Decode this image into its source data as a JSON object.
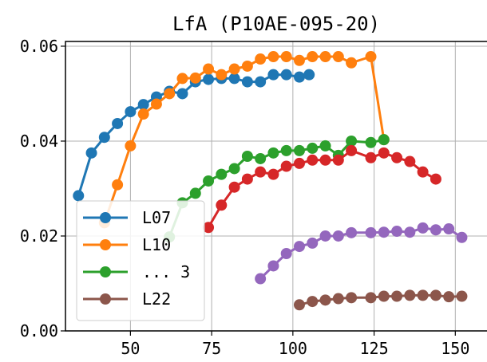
{
  "chart_data": {
    "type": "line",
    "title": "LfA (P10AE-095-20)",
    "xlabel": "",
    "ylabel": "",
    "xlim": [
      30,
      160
    ],
    "ylim": [
      0.0,
      0.061
    ],
    "xticks": [
      50,
      75,
      100,
      125,
      150
    ],
    "yticks": [
      0.0,
      0.02,
      0.04,
      0.06
    ],
    "xtick_labels": [
      "50",
      "75",
      "100",
      "125",
      "150"
    ],
    "ytick_labels": [
      "0.00",
      "0.02",
      "0.04",
      "0.06"
    ],
    "grid": true,
    "legend": {
      "position": "lower-left",
      "entries": [
        {
          "label": "L07",
          "color": "#1f77b4"
        },
        {
          "label": "L10",
          "color": "#ff7f0e"
        },
        {
          "label": "... 3",
          "color": "#2ca02c"
        },
        {
          "label": "L22",
          "color": "#8c564b"
        }
      ]
    },
    "series": [
      {
        "name": "L07",
        "color": "#1f77b4",
        "x": [
          34,
          38,
          42,
          46,
          50,
          54,
          58,
          62,
          66,
          70,
          74,
          78,
          82,
          86,
          90,
          94,
          98,
          102,
          105
        ],
        "y": [
          0.0285,
          0.0375,
          0.0408,
          0.0437,
          0.0462,
          0.0477,
          0.0493,
          0.0505,
          0.05,
          0.0525,
          0.053,
          0.0532,
          0.0532,
          0.0525,
          0.0525,
          0.054,
          0.054,
          0.0535,
          0.054
        ]
      },
      {
        "name": "L10",
        "color": "#ff7f0e",
        "x": [
          42,
          46,
          50,
          54,
          58,
          62,
          66,
          70,
          74,
          78,
          82,
          86,
          90,
          94,
          98,
          102,
          106,
          110,
          114,
          118,
          124,
          128
        ],
        "y": [
          0.0228,
          0.0308,
          0.039,
          0.0457,
          0.0478,
          0.05,
          0.0532,
          0.0533,
          0.0552,
          0.054,
          0.0552,
          0.0558,
          0.0573,
          0.0578,
          0.0578,
          0.057,
          0.0578,
          0.0578,
          0.0578,
          0.0565,
          0.0578,
          0.0403
        ]
      },
      {
        "name": "",
        "color": "#2ca02c",
        "x": [
          62,
          66,
          70,
          74,
          78,
          82,
          86,
          90,
          94,
          98,
          102,
          106,
          110,
          114,
          118,
          124,
          128
        ],
        "y": [
          0.0198,
          0.027,
          0.029,
          0.0316,
          0.033,
          0.0342,
          0.0368,
          0.0363,
          0.0375,
          0.038,
          0.038,
          0.0385,
          0.039,
          0.037,
          0.04,
          0.0397,
          0.0403
        ]
      },
      {
        "name": "",
        "color": "#d62728",
        "x": [
          74,
          78,
          82,
          86,
          90,
          94,
          98,
          102,
          106,
          110,
          114,
          118,
          124,
          128,
          132,
          136,
          140,
          144
        ],
        "y": [
          0.0218,
          0.0265,
          0.0303,
          0.032,
          0.0335,
          0.033,
          0.0347,
          0.0353,
          0.036,
          0.036,
          0.036,
          0.038,
          0.0365,
          0.0375,
          0.0365,
          0.0357,
          0.0335,
          0.032
        ]
      },
      {
        "name": "",
        "color": "#9467bd",
        "x": [
          90,
          94,
          98,
          102,
          106,
          110,
          114,
          118,
          124,
          128,
          132,
          136,
          140,
          144,
          148,
          152
        ],
        "y": [
          0.011,
          0.0137,
          0.0163,
          0.0178,
          0.0185,
          0.02,
          0.02,
          0.0207,
          0.0207,
          0.0208,
          0.021,
          0.0208,
          0.0217,
          0.0213,
          0.0215,
          0.0197
        ]
      },
      {
        "name": "L22",
        "color": "#8c564b",
        "x": [
          102,
          106,
          110,
          114,
          118,
          124,
          128,
          132,
          136,
          140,
          144,
          148,
          152
        ],
        "y": [
          0.0055,
          0.0062,
          0.0065,
          0.0068,
          0.007,
          0.007,
          0.0073,
          0.0073,
          0.0075,
          0.0075,
          0.0075,
          0.0072,
          0.0073
        ]
      }
    ]
  }
}
